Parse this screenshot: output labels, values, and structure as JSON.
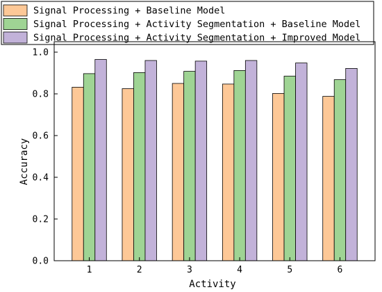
{
  "chart_data": {
    "type": "bar",
    "title": "",
    "xlabel": "Activity",
    "ylabel": "Accuracy",
    "categories": [
      "1",
      "2",
      "3",
      "4",
      "5",
      "6"
    ],
    "ylim": [
      0,
      1.05
    ],
    "yticks": [
      "0.0",
      "0.2",
      "0.4",
      "0.6",
      "0.8",
      "1.0"
    ],
    "grid": false,
    "legend_position": "top",
    "series": [
      {
        "name": "Signal Processing + Baseline Model",
        "color": "#fdc897",
        "values": [
          0.832,
          0.825,
          0.85,
          0.847,
          0.802,
          0.788
        ]
      },
      {
        "name": "Signal Processing + Activity Segmentation + Baseline Model",
        "color": "#9fd494",
        "values": [
          0.897,
          0.902,
          0.908,
          0.912,
          0.885,
          0.868
        ]
      },
      {
        "name": "Signal Processing + Activity Segmentation + Improved Model",
        "color": "#c2b2d9",
        "values": [
          0.965,
          0.96,
          0.957,
          0.96,
          0.948,
          0.922
        ]
      }
    ]
  }
}
